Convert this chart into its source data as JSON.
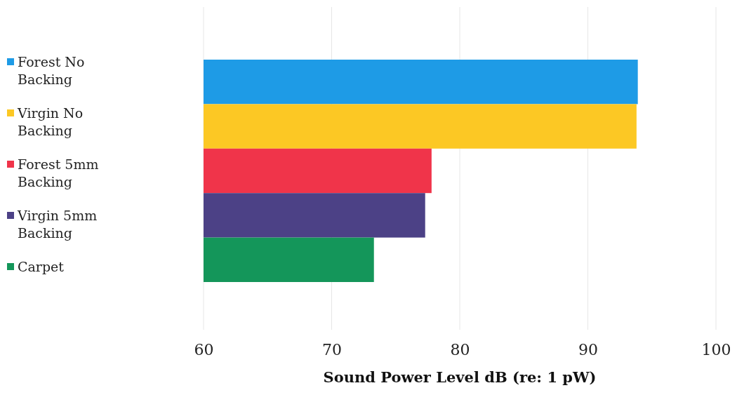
{
  "chart_data": {
    "type": "bar",
    "orientation": "horizontal",
    "xlabel": "Sound Power Level dB (re: 1 pW)",
    "categories": [
      null
    ],
    "series": [
      {
        "name": "Forest No Backing",
        "color": "#1e9be6",
        "values": [
          93.9
        ]
      },
      {
        "name": "Virgin No Backing",
        "color": "#fcc824",
        "values": [
          93.8
        ]
      },
      {
        "name": "Forest 5mm Backing",
        "color": "#f0344a",
        "values": [
          77.8
        ]
      },
      {
        "name": "Virgin 5mm Backing",
        "color": "#4c4186",
        "values": [
          77.3
        ]
      },
      {
        "name": "Carpet",
        "color": "#14965a",
        "values": [
          73.3
        ]
      }
    ],
    "xlim": [
      60,
      100
    ],
    "xticks": [
      60,
      70,
      80,
      90,
      100
    ],
    "grid": "x",
    "legend": "left"
  }
}
